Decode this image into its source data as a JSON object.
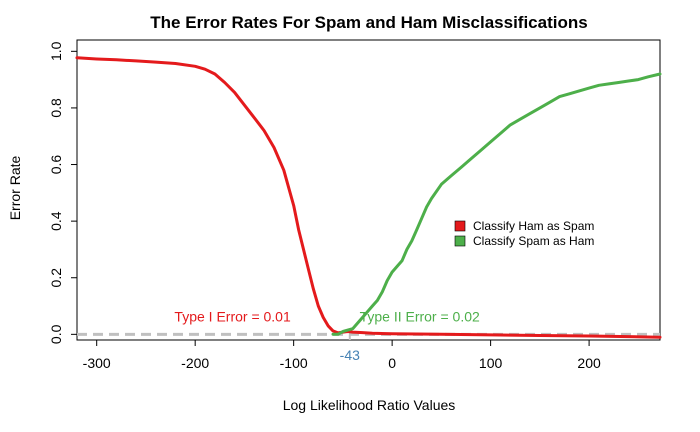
{
  "chart_data": {
    "type": "line",
    "title": "The Error Rates For Spam and Ham Misclassifications",
    "xlabel": "Log Likelihood Ratio Values",
    "ylabel": "Error Rate",
    "xlim": [
      -320,
      272
    ],
    "ylim": [
      -0.02,
      1.04
    ],
    "x_ticks": [
      -300,
      -200,
      -100,
      0,
      100,
      200
    ],
    "y_ticks": [
      0.0,
      0.2,
      0.4,
      0.6,
      0.8,
      1.0
    ],
    "y_tick_labels": [
      "0.0",
      "0.2",
      "0.4",
      "0.6",
      "0.8",
      "1.0"
    ],
    "grid": false,
    "legend_position": "right",
    "series": [
      {
        "name": "Classify Ham as Spam",
        "color": "#E41A1C",
        "x": [
          -320,
          -300,
          -280,
          -260,
          -240,
          -220,
          -200,
          -190,
          -180,
          -170,
          -160,
          -150,
          -140,
          -130,
          -120,
          -110,
          -100,
          -95,
          -90,
          -85,
          -80,
          -75,
          -70,
          -65,
          -60,
          -55,
          -50,
          -45,
          -40,
          -30,
          -20,
          0,
          50,
          100,
          150,
          200,
          272
        ],
        "y": [
          0.977,
          0.973,
          0.97,
          0.966,
          0.962,
          0.957,
          0.947,
          0.937,
          0.92,
          0.89,
          0.855,
          0.81,
          0.765,
          0.72,
          0.66,
          0.58,
          0.455,
          0.37,
          0.3,
          0.23,
          0.16,
          0.1,
          0.06,
          0.03,
          0.012,
          0.005,
          0.008,
          0.01,
          0.008,
          0.006,
          0.004,
          0.002,
          0.0,
          -0.002,
          -0.004,
          -0.006,
          -0.01
        ]
      },
      {
        "name": "Classify Spam as Ham",
        "color": "#4DAF4A",
        "x": [
          -60,
          -55,
          -50,
          -45,
          -40,
          -35,
          -30,
          -25,
          -20,
          -15,
          -10,
          -5,
          0,
          5,
          10,
          15,
          20,
          25,
          30,
          35,
          40,
          50,
          60,
          70,
          80,
          90,
          100,
          110,
          120,
          130,
          140,
          150,
          160,
          170,
          180,
          190,
          200,
          210,
          220,
          230,
          240,
          250,
          260,
          272
        ],
        "y": [
          0.0,
          0.0,
          0.01,
          0.015,
          0.02,
          0.04,
          0.06,
          0.08,
          0.1,
          0.12,
          0.15,
          0.19,
          0.22,
          0.24,
          0.26,
          0.3,
          0.33,
          0.37,
          0.41,
          0.45,
          0.48,
          0.53,
          0.56,
          0.59,
          0.62,
          0.65,
          0.68,
          0.71,
          0.74,
          0.76,
          0.78,
          0.8,
          0.82,
          0.84,
          0.85,
          0.86,
          0.87,
          0.88,
          0.885,
          0.89,
          0.895,
          0.9,
          0.91,
          0.92
        ]
      }
    ],
    "threshold": {
      "value": -43,
      "label": "-43",
      "color": "#4682B4",
      "baseline_color": "#C0C0C0"
    },
    "annotations": [
      {
        "text": "Type I Error = 0.01",
        "x": -162,
        "y": 0.045,
        "color": "#E41A1C"
      },
      {
        "text": "Type II Error =  0.02",
        "x": 28,
        "y": 0.045,
        "color": "#4DAF4A"
      }
    ]
  }
}
